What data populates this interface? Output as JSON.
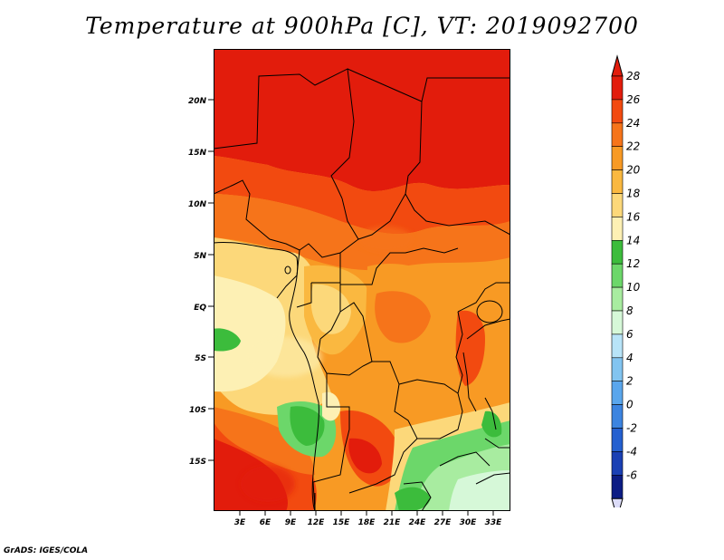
{
  "title": "Temperature at 900hPa [C], VT: 2019092700",
  "credit": "GrADS: IGES/COLA",
  "map": {
    "lat_labels": [
      "20N",
      "15N",
      "10N",
      "5N",
      "EQ",
      "5S",
      "10S",
      "15S"
    ],
    "lon_labels": [
      "3E",
      "6E",
      "9E",
      "12E",
      "15E",
      "18E",
      "21E",
      "24E",
      "27E",
      "30E",
      "33E"
    ]
  },
  "colorbar": {
    "labels": [
      "28",
      "26",
      "24",
      "22",
      "20",
      "18",
      "16",
      "14",
      "12",
      "10",
      "8",
      "6",
      "4",
      "2",
      "0",
      "-2",
      "-4",
      "-6"
    ],
    "colors": [
      "#e21c0c",
      "#f24a10",
      "#f6741a",
      "#f89a24",
      "#fab840",
      "#fcd87a",
      "#fdf0b4",
      "#3cbc3c",
      "#6cd76a",
      "#a8eca0",
      "#d6f8d8",
      "#b8e4f8",
      "#82c4f0",
      "#5aa6ec",
      "#3c84e0",
      "#2460d0",
      "#1a40b4",
      "#0c1c84"
    ]
  }
}
